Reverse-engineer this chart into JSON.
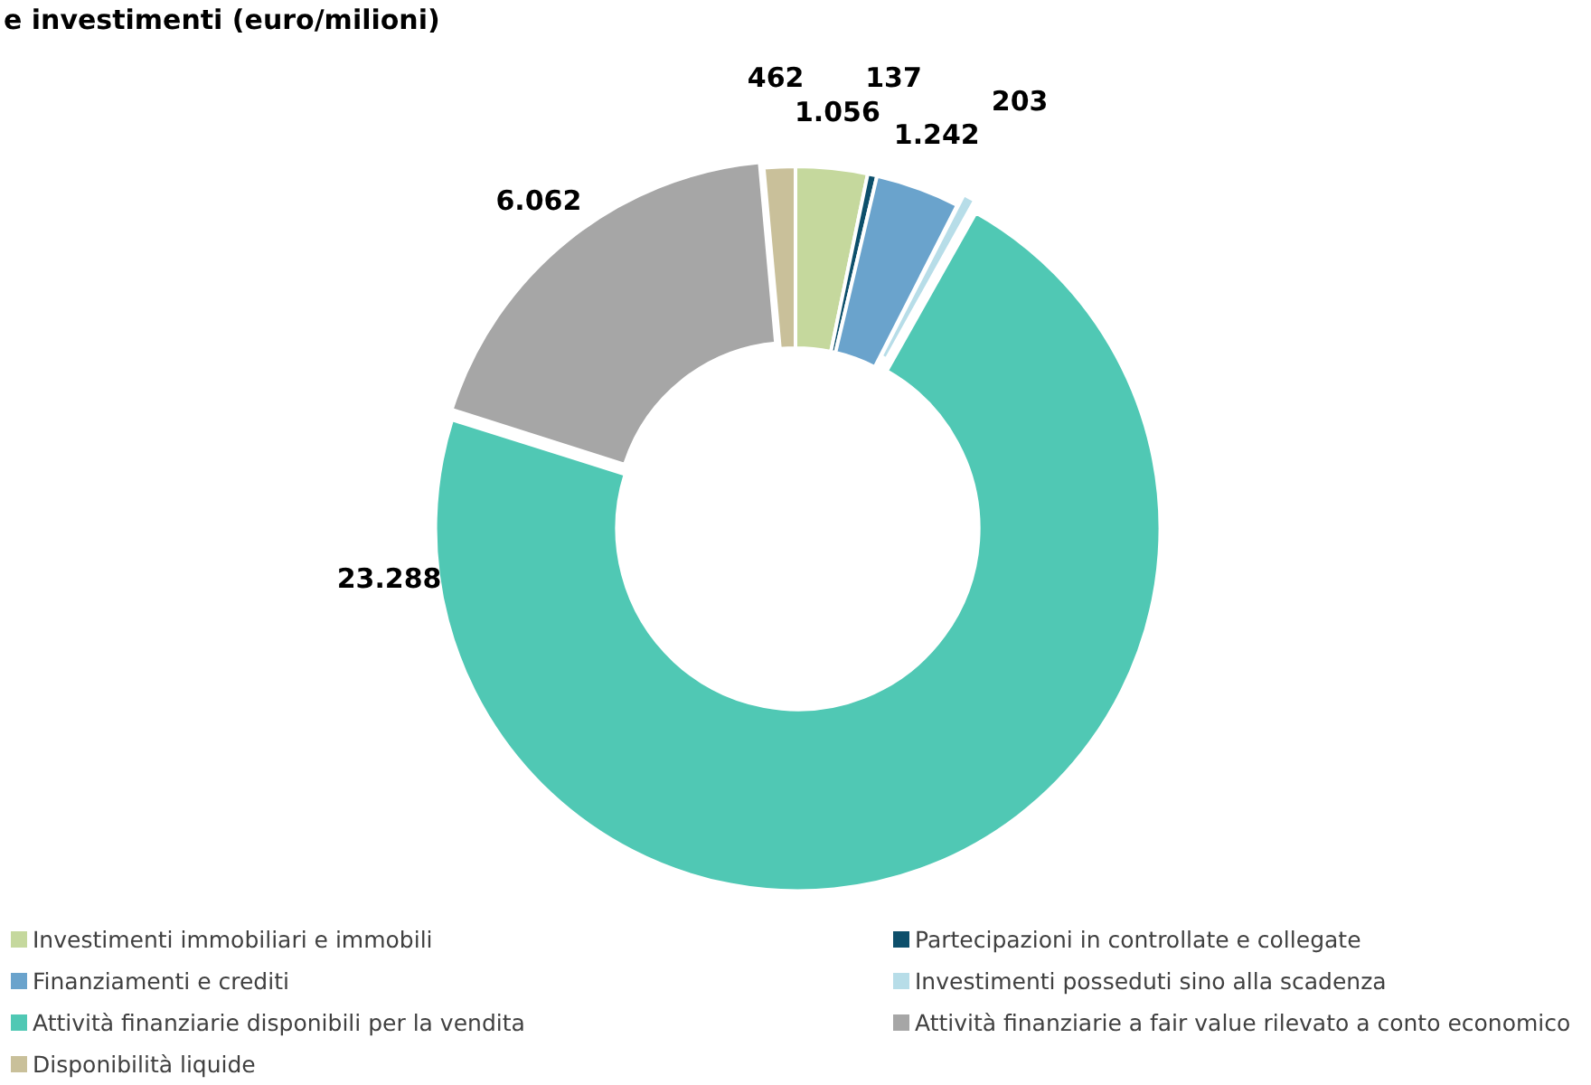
{
  "chart_data": {
    "type": "donut",
    "title": "e investimenti (euro/milioni)",
    "categories": [
      "Investimenti immobiliari e immobili",
      "Partecipazioni in controllate e collegate",
      "Finanziamenti e crediti",
      "Investimenti posseduti sino alla scadenza",
      "Attività finanziarie disponibili per la vendita",
      "Attività finanziarie a fair value rilevato a conto economico",
      "Disponibilità liquide"
    ],
    "values": [
      1056,
      137,
      1242,
      203,
      23288,
      6062,
      462
    ],
    "value_labels": [
      "1.056",
      "137",
      "1.242",
      "203",
      "23.288",
      "6.062",
      "462"
    ],
    "colors": [
      "#c5d89d",
      "#0d4f6b",
      "#6aa3cc",
      "#b7dde8",
      "#50c8b4",
      "#a6a6a6",
      "#c9c09a"
    ],
    "legend": "bottom"
  }
}
